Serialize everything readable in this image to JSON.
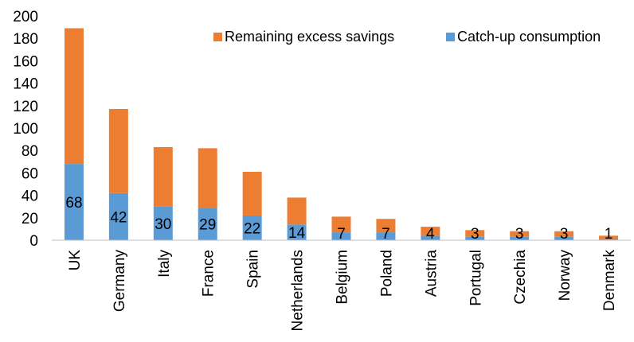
{
  "chart_data": {
    "type": "bar",
    "stacked": true,
    "categories": [
      "UK",
      "Germany",
      "Italy",
      "France",
      "Spain",
      "Netherlands",
      "Belgium",
      "Poland",
      "Austria",
      "Portugal",
      "Czechia",
      "Norway",
      "Denmark"
    ],
    "series": [
      {
        "name": "Catch-up consumption",
        "color": "#5B9BD5",
        "values": [
          68,
          42,
          30,
          29,
          22,
          14,
          7,
          7,
          4,
          3,
          3,
          3,
          1
        ],
        "data_labels": [
          "68",
          "42",
          "30",
          "29",
          "22",
          "14",
          "7",
          "7",
          "4",
          "3",
          "3",
          "3",
          "1"
        ]
      },
      {
        "name": "Remaining excess savings",
        "color": "#ED7D31",
        "values": [
          121,
          75,
          53,
          53,
          39,
          24,
          14,
          12,
          8,
          6,
          5,
          5,
          3
        ]
      }
    ],
    "ylim": [
      0,
      200
    ],
    "yticks": [
      "0",
      "20",
      "40",
      "60",
      "80",
      "100",
      "120",
      "140",
      "160",
      "180",
      "200"
    ],
    "grid": false,
    "legend_position": "top-right",
    "legend_order": [
      "Remaining excess savings",
      "Catch-up consumption"
    ]
  }
}
